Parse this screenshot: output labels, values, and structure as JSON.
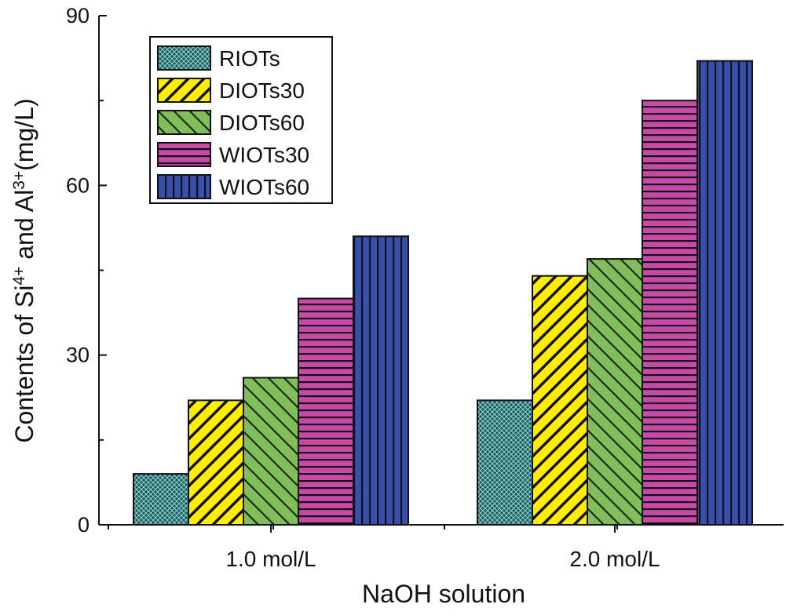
{
  "chart_data": {
    "type": "bar",
    "title": "",
    "xlabel": "NaOH solution",
    "ylabel": {
      "prefix": "Contents of Si",
      "sup1": "4+",
      "middle": " and Al",
      "sup2": "3+",
      "suffix": "(mg/L)"
    },
    "ylim": [
      0,
      90
    ],
    "yticks": [
      "0",
      "30",
      "60",
      "90"
    ],
    "categories": [
      "1.0 mol/L",
      "2.0 mol/L"
    ],
    "legend_position": "top-left",
    "series": [
      {
        "name": "RIOTs",
        "values": [
          9,
          22
        ],
        "color": "#1f5858",
        "pattern": "crosshatch"
      },
      {
        "name": "DIOTs30",
        "values": [
          22,
          44
        ],
        "color": "#ffee00",
        "pattern": "diagonal-up"
      },
      {
        "name": "DIOTs60",
        "values": [
          26,
          47
        ],
        "color": "#82bd5c",
        "pattern": "diagonal-down"
      },
      {
        "name": "WIOTs30",
        "values": [
          40,
          75
        ],
        "color": "#c64aa8",
        "pattern": "horizontal"
      },
      {
        "name": "WIOTs60",
        "values": [
          51,
          82
        ],
        "color": "#3a4fa8",
        "pattern": "vertical"
      }
    ]
  }
}
